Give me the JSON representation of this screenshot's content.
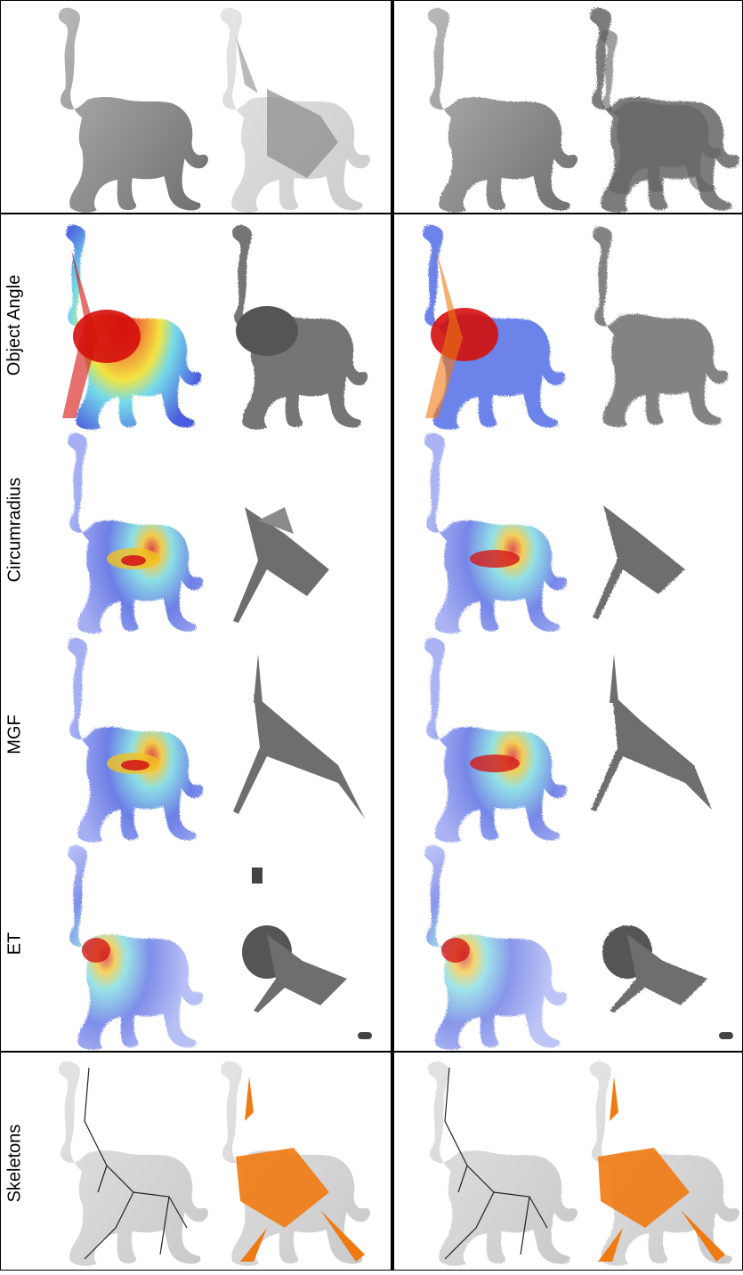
{
  "row_labels": {
    "object_angle": "Object Angle",
    "circumradius": "Circumradius",
    "mgf": "MGF",
    "et": "ET",
    "skeletons": "Skeletons"
  },
  "colors": {
    "mesh_gray": "#8f8f8f",
    "ghost_gray": "#d6d6d6",
    "medial_gray": "#6e6e6e",
    "heat_red": "#d4100c",
    "heat_yellow": "#f1e021",
    "heat_cyan": "#5ed6e6",
    "heat_blue": "#2c3fd8",
    "skeleton_orange": "#f07a12",
    "divider": "#000000"
  }
}
